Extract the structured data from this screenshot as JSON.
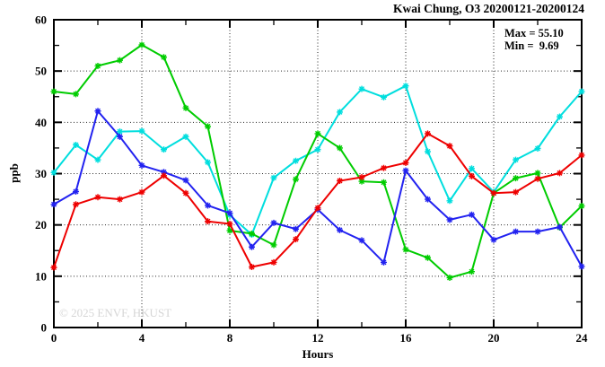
{
  "title": "Kwai Chung, O3 20200121-20200124",
  "stats": {
    "max_label": "Max = 55.10",
    "min_label": "Min =  9.69"
  },
  "watermark": "© 2025 ENVF, HKUST",
  "chart_data": {
    "type": "line",
    "title": "Kwai Chung, O3 20200121-20200124",
    "xlabel": "Hours",
    "ylabel": "ppb",
    "xlim": [
      0,
      24
    ],
    "ylim": [
      0,
      60
    ],
    "x_ticks_major": [
      0,
      4,
      8,
      12,
      16,
      20,
      24
    ],
    "x_ticks_minor": [
      2,
      6,
      10,
      14,
      18,
      22
    ],
    "y_ticks_major": [
      0,
      10,
      20,
      30,
      40,
      50,
      60
    ],
    "y_ticks_minor": [
      5,
      15,
      25,
      35,
      45,
      55
    ],
    "grid_x": [
      4,
      8,
      12,
      16,
      20
    ],
    "grid_y": [
      10,
      20,
      30,
      40,
      50
    ],
    "grid_style": "dotted",
    "legend_position": "none",
    "max_value": 55.1,
    "min_value": 9.69,
    "x": [
      0,
      1,
      2,
      3,
      4,
      5,
      6,
      7,
      8,
      9,
      10,
      11,
      12,
      13,
      14,
      15,
      16,
      17,
      18,
      19,
      20,
      21,
      22,
      23,
      24
    ],
    "series": [
      {
        "name": "cyan",
        "color": "#00dede",
        "values": [
          30.2,
          35.6,
          32.7,
          38.2,
          38.3,
          34.7,
          37.2,
          32.2,
          21.9,
          18.1,
          29.2,
          32.5,
          34.7,
          42.0,
          46.5,
          44.9,
          47.1,
          34.3,
          24.7,
          31.0,
          26.4,
          32.7,
          34.9,
          41.1,
          46.0
        ]
      },
      {
        "name": "green",
        "color": "#00cc00",
        "values": [
          46.0,
          45.5,
          51.0,
          52.1,
          55.1,
          52.7,
          42.8,
          39.2,
          18.9,
          18.3,
          16.1,
          28.9,
          37.8,
          35.0,
          28.5,
          28.3,
          15.2,
          13.6,
          9.7,
          10.9,
          26.2,
          29.1,
          30.1,
          19.5,
          23.7
        ]
      },
      {
        "name": "blue",
        "color": "#2222f0",
        "values": [
          24.0,
          26.5,
          42.2,
          37.2,
          31.6,
          30.3,
          28.7,
          23.8,
          22.3,
          15.7,
          20.4,
          19.2,
          23.0,
          19.0,
          17.0,
          12.7,
          30.6,
          25.0,
          21.0,
          22.0,
          17.1,
          18.7,
          18.7,
          19.6,
          11.9
        ]
      },
      {
        "name": "red",
        "color": "#ee0000",
        "values": [
          11.7,
          24.0,
          25.4,
          25.0,
          26.4,
          29.6,
          26.2,
          20.7,
          20.2,
          11.8,
          12.7,
          17.2,
          23.3,
          28.6,
          29.3,
          31.1,
          32.1,
          37.8,
          35.4,
          29.5,
          26.2,
          26.4,
          29.0,
          30.1,
          33.6
        ]
      }
    ]
  }
}
